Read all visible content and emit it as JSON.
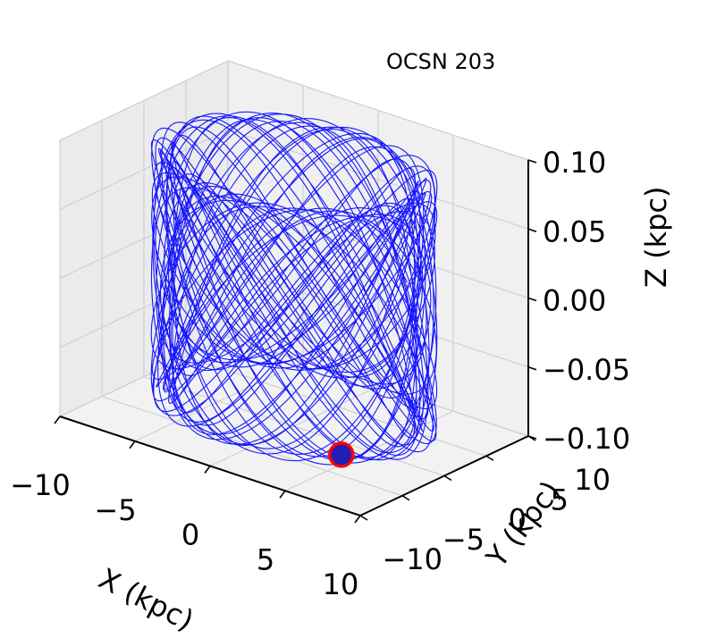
{
  "chart_data": {
    "type": "line",
    "projection": "3d",
    "title": "OCSN 203",
    "xlabel": "X (kpc)",
    "ylabel": "Y (kpc)",
    "zlabel": "Z (kpc)",
    "xlim": [
      -10,
      10
    ],
    "ylim": [
      -10,
      10
    ],
    "zlim": [
      -0.1,
      0.1
    ],
    "x_ticks": [
      "−10",
      "−5",
      "0",
      "5",
      "10"
    ],
    "y_ticks": [
      "−10",
      "−5",
      "0",
      "5",
      "10"
    ],
    "z_ticks": [
      "−0.10",
      "−0.05",
      "0.00",
      "0.05",
      "0.10"
    ],
    "grid": true,
    "series": [
      {
        "kind": "orbit",
        "color": "#0000ff",
        "radius_min": 7.0,
        "radius_max": 8.3,
        "z_amplitude": 0.09
      }
    ],
    "marker": {
      "x": 6.5,
      "y": -6.0,
      "z": -0.08,
      "face_color": "#1f1fb4",
      "edge_color": "#ff0000"
    }
  }
}
